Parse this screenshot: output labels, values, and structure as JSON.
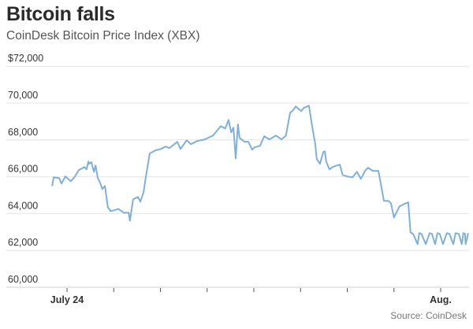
{
  "chart_data": {
    "type": "line",
    "title": "Bitcoin falls",
    "subtitle": "CoinDesk Bitcoin Price Index (XBX)",
    "source": "Source: CoinDesk",
    "xlabel": "",
    "ylabel": "",
    "ylim": [
      60000,
      72000
    ],
    "y_ticks": [
      72000,
      70000,
      68000,
      66000,
      64000,
      62000,
      60000
    ],
    "y_tick_labels": [
      "$72,000",
      "70,000",
      "68,000",
      "66,000",
      "64,000",
      "62,000",
      "60,000"
    ],
    "x_ticks": [
      "07-24",
      "07-25",
      "07-26",
      "07-27",
      "07-28",
      "07-29",
      "07-30",
      "07-31",
      "08-01"
    ],
    "x_tick_labels": {
      "07-24": "July 24",
      "08-01": "Aug."
    },
    "grid": "horizontal",
    "line_color": "#7fb0d9",
    "series": [
      {
        "x": [
          "07-23 16:20",
          "07-23 17:10",
          "07-23 20:00",
          "07-23 21:10",
          "07-23 23:10",
          "07-24 02:00",
          "07-24 04:00",
          "07-24 06:00",
          "07-24 09:00",
          "07-24 10:00",
          "07-24 11:00",
          "07-24 11:20",
          "07-24 12:30",
          "07-24 13:50",
          "07-24 14:40",
          "07-24 15:50",
          "07-24 17:00",
          "07-24 18:10",
          "07-24 19:30",
          "07-24 21:00",
          "07-24 22:20",
          "07-25 00:20",
          "07-25 02:20",
          "07-25 05:10",
          "07-25 07:40",
          "07-25 08:20",
          "07-25 10:00",
          "07-25 12:30",
          "07-25 13:40",
          "07-25 15:20",
          "07-25 16:30",
          "07-25 18:30",
          "07-25 21:20",
          "07-26 00:10",
          "07-26 02:40",
          "07-26 04:40",
          "07-26 08:40",
          "07-26 10:20",
          "07-26 13:30",
          "07-26 15:40",
          "07-26 18:50",
          "07-26 22:50",
          "07-27 03:00",
          "07-27 07:00",
          "07-27 09:20",
          "07-27 11:00",
          "07-27 12:20",
          "07-27 13:30",
          "07-27 14:40",
          "07-27 15:50",
          "07-27 16:40",
          "07-27 19:10",
          "07-27 21:10",
          "07-27 23:10",
          "07-28 00:20",
          "07-28 03:10",
          "07-28 05:20",
          "07-28 08:00",
          "07-28 11:20",
          "07-28 14:10",
          "07-28 16:30",
          "07-28 18:40",
          "07-28 20:10",
          "07-28 21:30",
          "07-29 00:20",
          "07-29 01:30",
          "07-29 04:20",
          "07-29 06:00",
          "07-29 07:30",
          "07-29 08:20",
          "07-29 10:00",
          "07-29 11:40",
          "07-29 12:30",
          "07-29 13:10",
          "07-29 14:50",
          "07-29 16:30",
          "07-29 18:30",
          "07-29 20:10",
          "07-29 21:40",
          "07-29 23:50",
          "07-30 02:40",
          "07-30 05:00",
          "07-30 07:00",
          "07-30 09:10",
          "07-30 10:40",
          "07-30 13:10",
          "07-30 16:00",
          "07-30 18:50",
          "07-30 21:10",
          "07-30 22:30",
          "07-31 00:00",
          "07-31 02:50",
          "07-31 05:20",
          "07-31 07:20",
          "07-31 08:30",
          "07-31 09:50",
          "07-31 12:10",
          "07-31 13:00",
          "07-31 14:10",
          "07-31 16:20",
          "07-31 18:20",
          "07-31 19:30",
          "07-31 21:10",
          "07-31 22:20",
          "07-31 23:30",
          "08-01 01:10",
          "08-01 03:10",
          "08-01 04:30",
          "08-01 06:30",
          "08-01 07:40",
          "08-01 09:20",
          "08-01 10:50",
          "08-01 11:40",
          "08-01 12:30",
          "08-01 12:50",
          "08-01 14:10"
        ],
        "values": [
          65500,
          65970,
          65930,
          65630,
          66020,
          65760,
          66000,
          66360,
          66530,
          66400,
          66830,
          66700,
          66790,
          66270,
          66610,
          65930,
          65670,
          65330,
          65500,
          64350,
          64140,
          64180,
          64260,
          64050,
          64050,
          63620,
          64780,
          64900,
          64650,
          65160,
          66000,
          67260,
          67430,
          67510,
          67640,
          67560,
          67900,
          67510,
          67980,
          67770,
          67940,
          68030,
          68240,
          68750,
          68620,
          69090,
          68410,
          68670,
          67000,
          68840,
          68110,
          67900,
          67900,
          67470,
          67600,
          67680,
          68200,
          68030,
          68240,
          68030,
          68240,
          69480,
          69610,
          69820,
          69560,
          69730,
          69860,
          68700,
          67800,
          66960,
          66700,
          67340,
          67380,
          66830,
          66400,
          66530,
          66610,
          66660,
          66100,
          66020,
          65970,
          66270,
          65890,
          66320,
          66490,
          66320,
          66320,
          64690,
          64690,
          64560,
          63790,
          64390,
          64520,
          64610,
          62980,
          62900,
          62340,
          62940,
          62900,
          62340,
          62940,
          62900,
          62340,
          62940,
          62900,
          62340,
          62940,
          62900,
          62340,
          62940,
          62900,
          62340,
          62940,
          62900,
          62340,
          62940
        ]
      }
    ]
  }
}
